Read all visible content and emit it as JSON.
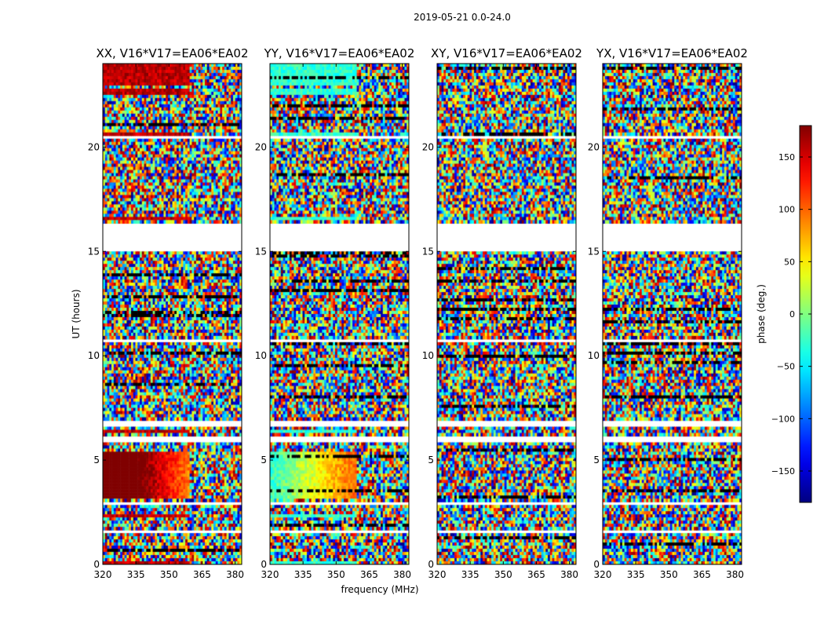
{
  "figure_title": "2019-05-21 0.0-24.0",
  "chart_data": {
    "type": "heatmap",
    "suptitle": "2019-05-21 0.0-24.0",
    "xlabel": "frequency (MHz)",
    "ylabel": "UT (hours)",
    "xlim": [
      320,
      383
    ],
    "ylim": [
      0,
      24
    ],
    "xticks": [
      320,
      335,
      350,
      365,
      380
    ],
    "xtick_labels": [
      "320",
      "335",
      "350",
      "365",
      "380"
    ],
    "yticks": [
      0,
      5,
      10,
      15,
      20
    ],
    "ytick_labels": [
      "0",
      "5",
      "10",
      "15",
      "20"
    ],
    "panels": [
      {
        "title": "XX, V16*V17=EA06*EA02",
        "correlation": "XX"
      },
      {
        "title": "YY, V16*V17=EA06*EA02",
        "correlation": "YY"
      },
      {
        "title": "XY, V16*V17=EA06*EA02",
        "correlation": "XY"
      },
      {
        "title": "YX, V16*V17=EA06*EA02",
        "correlation": "YX"
      }
    ],
    "colorbar": {
      "label": "phase (deg.)",
      "range": [
        -180,
        180
      ],
      "ticks": [
        -150,
        -100,
        -50,
        0,
        50,
        100,
        150
      ],
      "tick_labels": [
        "−150",
        "−100",
        "−50",
        "0",
        "50",
        "100",
        "150"
      ],
      "colormap": "jet"
    },
    "flagged_ut_ranges": [
      [
        1.45,
        1.6
      ],
      [
        2.9,
        3.0
      ],
      [
        5.9,
        6.1
      ],
      [
        6.6,
        6.85
      ],
      [
        10.6,
        10.75
      ],
      [
        15.05,
        16.4
      ],
      [
        20.45,
        20.6
      ]
    ],
    "coherent_ut_ranges": [
      [
        0.0,
        0.15
      ],
      [
        2.25,
        2.45
      ],
      [
        3.1,
        5.4
      ],
      [
        6.3,
        6.5
      ],
      [
        16.5,
        16.6
      ],
      [
        20.6,
        20.7
      ],
      [
        22.5,
        22.85
      ],
      [
        23.0,
        24.0
      ]
    ]
  }
}
